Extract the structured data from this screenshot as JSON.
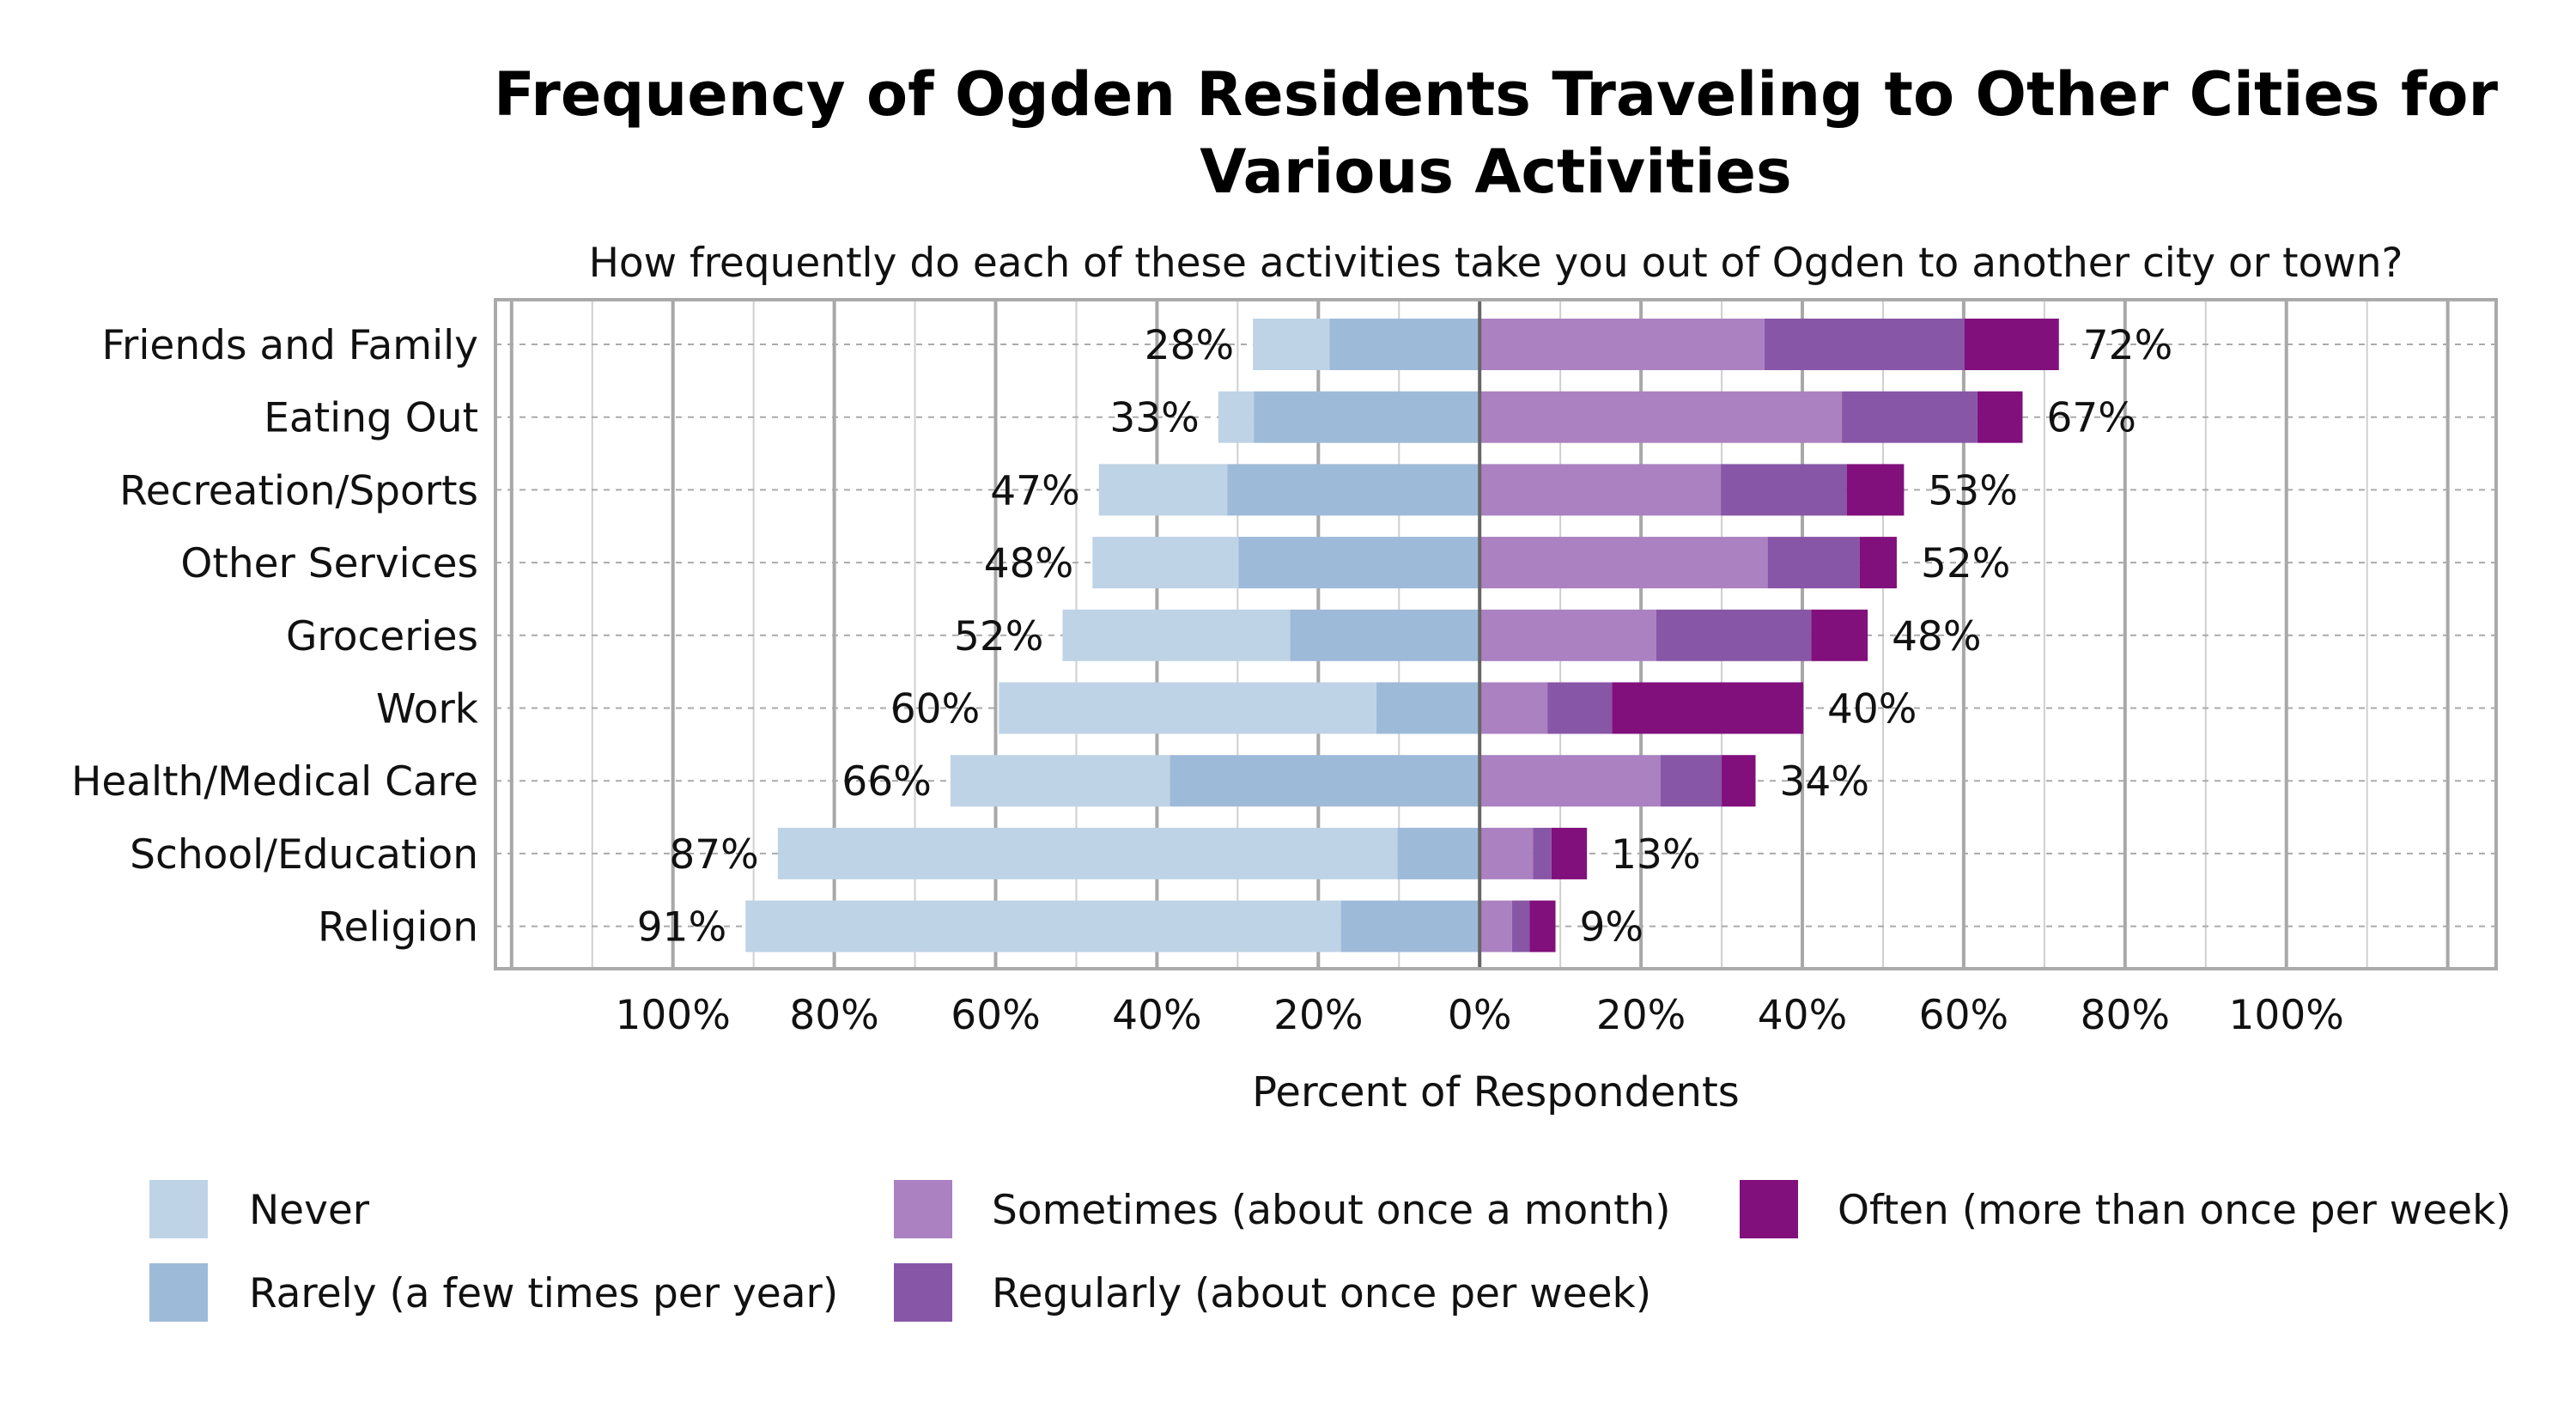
{
  "chart_data": {
    "type": "bar",
    "orientation": "horizontal-diverging-stacked",
    "title": "Frequency of Ogden Residents Traveling to Other Cities for Various Activities",
    "title_lines": [
      "Frequency of Ogden Residents Traveling to Other Cities for",
      "Various Activities"
    ],
    "subtitle": "How frequently do each of these activities take you out of Ogden to another city or town?",
    "xlabel": "Percent of Respondents",
    "xlim": [
      -122,
      126
    ],
    "xticks": [
      -100,
      -80,
      -60,
      -40,
      -20,
      0,
      20,
      40,
      60,
      80,
      100
    ],
    "xtick_labels": [
      "100%",
      "80%",
      "60%",
      "40%",
      "20%",
      "0%",
      "20%",
      "40%",
      "60%",
      "80%",
      "100%"
    ],
    "grid": true,
    "legend_position": "bottom",
    "categories": [
      "Friends and Family",
      "Eating Out",
      "Recreation/Sports",
      "Other Services",
      "Groceries",
      "Work",
      "Health/Medical Care",
      "School/Education",
      "Religion"
    ],
    "series": [
      {
        "name": "Never",
        "side": "negative",
        "color": "#bfd3e6",
        "values": [
          9.5,
          4.4,
          15.9,
          18.1,
          28.2,
          46.8,
          27.2,
          76.8,
          73.8
        ]
      },
      {
        "name": "Rarely (a few times per year)",
        "side": "negative",
        "color": "#9ebad9",
        "values": [
          18.6,
          28.0,
          31.3,
          29.9,
          23.5,
          12.8,
          38.4,
          10.2,
          17.2
        ]
      },
      {
        "name": "Sometimes (about once a month)",
        "side": "positive",
        "color": "#ab81c1",
        "values": [
          35.3,
          44.9,
          29.9,
          35.7,
          21.9,
          8.4,
          22.4,
          6.6,
          4.0
        ]
      },
      {
        "name": "Regularly (about once per week)",
        "side": "positive",
        "color": "#8856a7",
        "values": [
          24.8,
          16.8,
          15.6,
          11.4,
          19.2,
          8.0,
          7.6,
          2.3,
          2.2
        ]
      },
      {
        "name": "Often (more than once per week)",
        "side": "positive",
        "color": "#810f7c",
        "values": [
          11.7,
          5.6,
          7.1,
          4.6,
          7.0,
          23.7,
          4.2,
          4.4,
          3.2
        ]
      }
    ],
    "left_labels": [
      "28%",
      "33%",
      "47%",
      "48%",
      "52%",
      "60%",
      "66%",
      "87%",
      "91%"
    ],
    "right_labels": [
      "72%",
      "67%",
      "53%",
      "52%",
      "48%",
      "40%",
      "34%",
      "13%",
      "9%"
    ],
    "legend": [
      {
        "label": "Never",
        "color": "#bfd3e6"
      },
      {
        "label": "Rarely (a few times per year)",
        "color": "#9ebad9"
      },
      {
        "label": "Sometimes (about once a month)",
        "color": "#ab81c1"
      },
      {
        "label": "Regularly (about once per week)",
        "color": "#8856a7"
      },
      {
        "label": "Often (more than once per week)",
        "color": "#810f7c"
      }
    ]
  }
}
